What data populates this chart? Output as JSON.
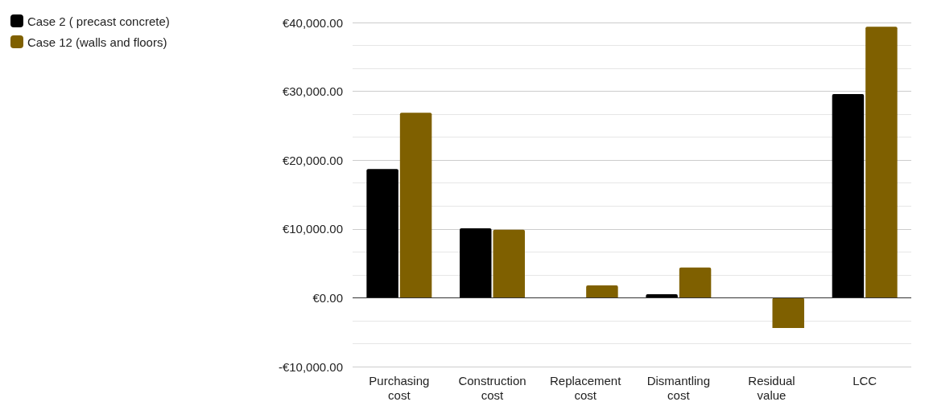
{
  "chart_data": {
    "type": "bar",
    "categories": [
      "Purchasing cost",
      "Construction cost",
      "Replacement cost",
      "Dismantling cost",
      "Residual value",
      "LCC"
    ],
    "series": [
      {
        "name": "Case 2 ( precast concrete)",
        "color": "#000000",
        "values": [
          18700,
          10100,
          0,
          500,
          0,
          29600
        ]
      },
      {
        "name": "Case 12 (walls and floors)",
        "color": "#7f6000",
        "values": [
          26900,
          9900,
          1800,
          4400,
          -4400,
          39400
        ]
      }
    ],
    "ylim": [
      -10000,
      40000
    ],
    "yticks": [
      {
        "value": -10000,
        "label": "-€10,000.00"
      },
      {
        "value": 0,
        "label": "€0.00"
      },
      {
        "value": 10000,
        "label": "€10,000.00"
      },
      {
        "value": 20000,
        "label": "€20,000.00"
      },
      {
        "value": 30000,
        "label": "€30,000.00"
      },
      {
        "value": 40000,
        "label": "€40,000.00"
      }
    ],
    "grid": true,
    "legend": "top left"
  }
}
